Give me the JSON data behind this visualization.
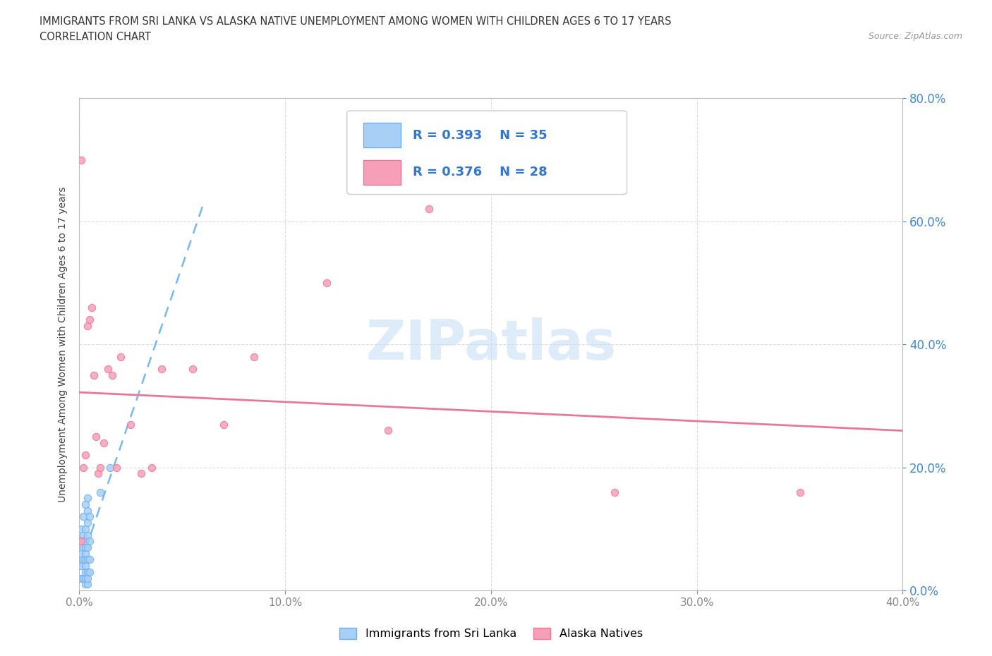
{
  "title_line1": "IMMIGRANTS FROM SRI LANKA VS ALASKA NATIVE UNEMPLOYMENT AMONG WOMEN WITH CHILDREN AGES 6 TO 17 YEARS",
  "title_line2": "CORRELATION CHART",
  "source": "Source: ZipAtlas.com",
  "xlim": [
    0.0,
    0.4
  ],
  "ylim": [
    0.0,
    0.8
  ],
  "xticks": [
    0.0,
    0.1,
    0.2,
    0.3,
    0.4
  ],
  "yticks": [
    0.0,
    0.2,
    0.4,
    0.6,
    0.8
  ],
  "ylabel": "Unemployment Among Women with Children Ages 6 to 17 years",
  "sri_lanka_R": 0.393,
  "sri_lanka_N": 35,
  "alaska_R": 0.376,
  "alaska_N": 28,
  "sri_lanka_color": "#a8cff5",
  "alaska_color": "#f5a0b8",
  "sri_lanka_edge": "#6aaef5",
  "alaska_edge": "#e87898",
  "trendline_sri_color": "#7ab8f0",
  "trendline_ak_color": "#e87898",
  "watermark_color": "#c8dff5",
  "sri_lanka_x": [
    0.001,
    0.001,
    0.001,
    0.001,
    0.001,
    0.002,
    0.002,
    0.002,
    0.002,
    0.002,
    0.003,
    0.003,
    0.003,
    0.003,
    0.003,
    0.003,
    0.003,
    0.003,
    0.003,
    0.003,
    0.004,
    0.004,
    0.004,
    0.004,
    0.004,
    0.004,
    0.004,
    0.004,
    0.004,
    0.005,
    0.005,
    0.005,
    0.005,
    0.01,
    0.015
  ],
  "sri_lanka_y": [
    0.02,
    0.04,
    0.06,
    0.08,
    0.1,
    0.02,
    0.05,
    0.07,
    0.09,
    0.12,
    0.01,
    0.02,
    0.03,
    0.04,
    0.05,
    0.06,
    0.07,
    0.08,
    0.1,
    0.14,
    0.01,
    0.02,
    0.03,
    0.05,
    0.07,
    0.09,
    0.11,
    0.13,
    0.15,
    0.03,
    0.05,
    0.08,
    0.12,
    0.16,
    0.2
  ],
  "alaska_x": [
    0.001,
    0.002,
    0.003,
    0.004,
    0.005,
    0.006,
    0.007,
    0.008,
    0.009,
    0.01,
    0.012,
    0.014,
    0.016,
    0.018,
    0.02,
    0.025,
    0.03,
    0.035,
    0.04,
    0.055,
    0.07,
    0.085,
    0.12,
    0.15,
    0.17,
    0.26,
    0.35,
    0.001
  ],
  "alaska_y": [
    0.7,
    0.2,
    0.22,
    0.43,
    0.44,
    0.46,
    0.35,
    0.25,
    0.19,
    0.2,
    0.24,
    0.36,
    0.35,
    0.2,
    0.38,
    0.27,
    0.19,
    0.2,
    0.36,
    0.36,
    0.27,
    0.38,
    0.5,
    0.26,
    0.62,
    0.16,
    0.16,
    0.08
  ]
}
